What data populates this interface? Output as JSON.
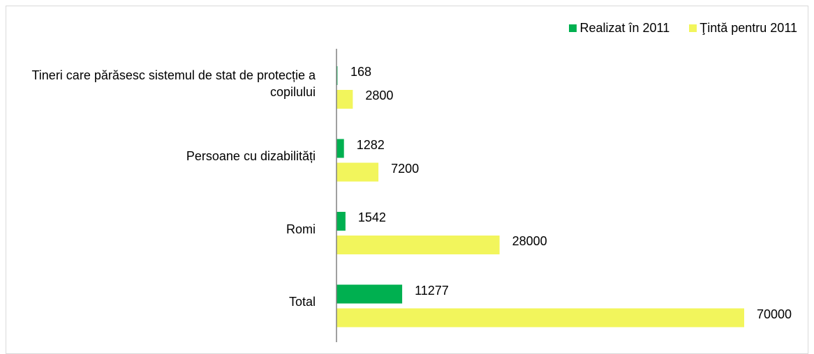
{
  "chart_data": {
    "type": "bar",
    "orientation": "horizontal",
    "categories": [
      "Tineri care părăsesc sistemul de stat de protecție a copilului",
      "Persoane cu dizabilități",
      "Romi",
      "Total"
    ],
    "series": [
      {
        "name": "Realizat în 2011",
        "color": "#00b050",
        "values": [
          168,
          1282,
          1542,
          11277
        ]
      },
      {
        "name": "Ţintă pentru 2011",
        "color": "#f2f55c",
        "values": [
          2800,
          7200,
          28000,
          70000
        ]
      }
    ]
  }
}
